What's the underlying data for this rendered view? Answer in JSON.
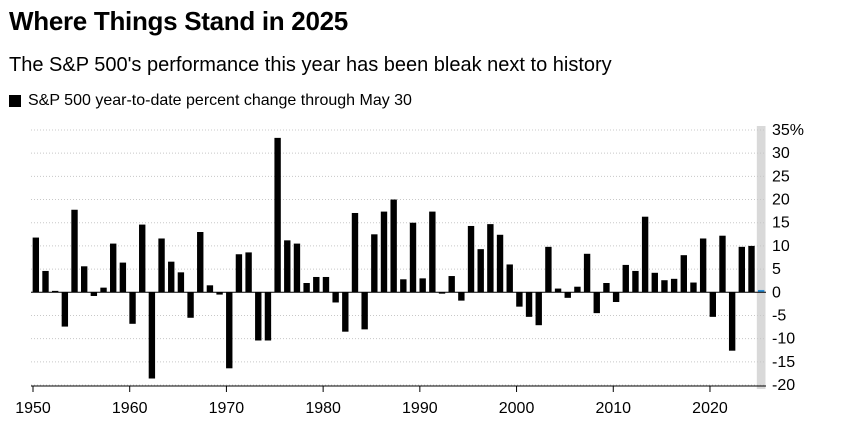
{
  "header": {
    "title": "Where Things Stand in 2025",
    "subtitle": "The S&P 500's performance this year has been bleak next to history"
  },
  "chart_data": {
    "type": "bar",
    "title": "Where Things Stand in 2025",
    "subtitle": "The S&P 500's performance this year has been bleak next to history",
    "legend": [
      {
        "label": "S&P 500 year-to-date percent change through May 30",
        "color": "#000000"
      }
    ],
    "highlight_color": "#2b8fd9",
    "highlight_band_color": "#d9d9d9",
    "xlabel": "",
    "ylabel": "",
    "ylim": [
      -20,
      35
    ],
    "yticks": [
      35,
      30,
      25,
      20,
      15,
      10,
      5,
      0,
      -5,
      -10,
      -15,
      -20
    ],
    "ytick_labels": [
      "35%",
      "30",
      "25",
      "20",
      "15",
      "10",
      "5",
      "0",
      "-5",
      "-10",
      "-15",
      "-20"
    ],
    "xlim": [
      1950,
      2025
    ],
    "xticks": [
      1950,
      1960,
      1970,
      1980,
      1990,
      2000,
      2010,
      2020
    ],
    "xtick_labels": [
      "1950",
      "1960",
      "1970",
      "1980",
      "1990",
      "2000",
      "2010",
      "2020"
    ],
    "grid": true,
    "highlight_year": 2025,
    "years": [
      1950,
      1951,
      1952,
      1953,
      1954,
      1955,
      1956,
      1957,
      1958,
      1959,
      1960,
      1961,
      1962,
      1963,
      1964,
      1965,
      1966,
      1967,
      1968,
      1969,
      1970,
      1971,
      1972,
      1973,
      1974,
      1975,
      1976,
      1977,
      1978,
      1979,
      1980,
      1981,
      1982,
      1983,
      1984,
      1985,
      1986,
      1987,
      1988,
      1989,
      1990,
      1991,
      1992,
      1993,
      1994,
      1995,
      1996,
      1997,
      1998,
      1999,
      2000,
      2001,
      2002,
      2003,
      2004,
      2005,
      2006,
      2007,
      2008,
      2009,
      2010,
      2011,
      2012,
      2013,
      2014,
      2015,
      2016,
      2017,
      2018,
      2019,
      2020,
      2021,
      2022,
      2023,
      2024,
      2025
    ],
    "values": [
      11.8,
      4.6,
      0.3,
      -7.4,
      17.8,
      5.6,
      -0.8,
      1.0,
      10.5,
      6.4,
      -6.8,
      14.6,
      -18.6,
      11.6,
      6.6,
      4.3,
      -5.5,
      13.0,
      1.5,
      -0.5,
      -16.4,
      8.2,
      8.6,
      -10.4,
      -10.4,
      33.3,
      11.2,
      10.5,
      2.0,
      3.3,
      3.3,
      -2.2,
      -8.5,
      17.1,
      -8.0,
      12.5,
      17.4,
      20.0,
      2.8,
      15.0,
      3.0,
      17.4,
      -0.3,
      3.5,
      -1.8,
      14.3,
      9.3,
      14.7,
      12.4,
      6.0,
      -3.1,
      -5.3,
      -7.1,
      9.8,
      0.8,
      -1.2,
      1.2,
      8.3,
      -4.5,
      2.0,
      -2.1,
      5.9,
      4.6,
      16.3,
      4.2,
      2.6,
      2.9,
      8.0,
      2.1,
      11.6,
      -5.3,
      12.2,
      -12.6,
      9.8,
      10.0,
      0.5
    ]
  }
}
